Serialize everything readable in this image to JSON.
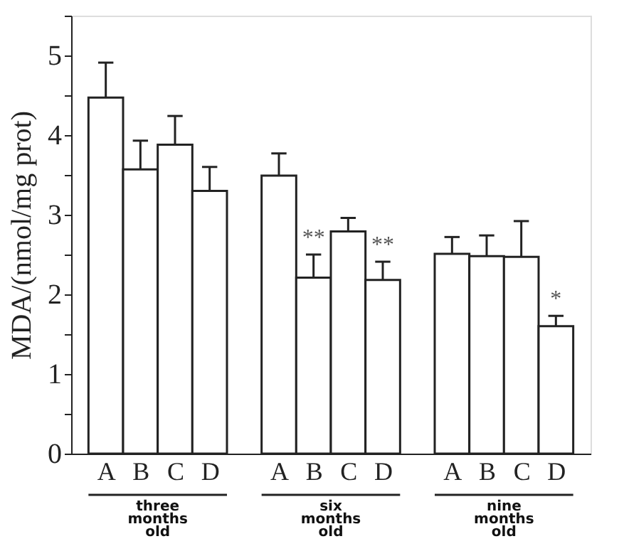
{
  "chart_data": {
    "type": "bar",
    "ylabel": "MDA/(nmol/mg prot)",
    "categories": [
      "A",
      "B",
      "C",
      "D",
      "A",
      "B",
      "C",
      "D",
      "A",
      "B",
      "C",
      "D"
    ],
    "values": [
      4.47,
      3.57,
      3.88,
      3.3,
      3.49,
      2.21,
      2.79,
      2.18,
      2.51,
      2.48,
      2.47,
      1.6
    ],
    "errors": [
      0.44,
      0.36,
      0.36,
      0.3,
      0.28,
      0.29,
      0.17,
      0.23,
      0.21,
      0.26,
      0.45,
      0.13
    ],
    "value_labels": [
      null,
      null,
      null,
      null,
      null,
      "**",
      null,
      "**",
      null,
      null,
      null,
      "*"
    ],
    "color": "#ffffff",
    "ylim": [
      0,
      5.5
    ],
    "yticks": [
      0,
      {
        "value": 0.5,
        "label": null
      },
      1,
      {
        "value": 1.5,
        "label": null
      },
      2,
      {
        "value": 2.5,
        "label": null
      },
      3,
      {
        "value": 3.5,
        "label": null
      },
      4,
      {
        "value": 4.5,
        "label": null
      },
      5,
      {
        "value": 5.5,
        "label": null
      }
    ],
    "grid": false,
    "annotations": [
      "three months old",
      "six months old",
      "nine months old"
    ]
  }
}
